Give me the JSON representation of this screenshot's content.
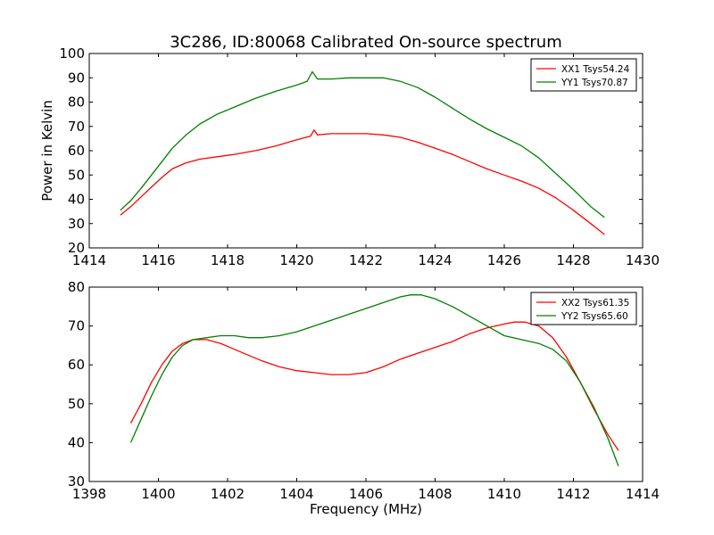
{
  "figure": {
    "title": "3C286, ID:80068 Calibrated On-source spectrum"
  },
  "chart_data": [
    {
      "type": "line",
      "title": "3C286, ID:80068 Calibrated On-source spectrum",
      "xlabel": "",
      "ylabel": "Power in Kelvin",
      "xlim": [
        1414,
        1430
      ],
      "ylim": [
        20,
        100
      ],
      "xticks": [
        1414,
        1416,
        1418,
        1420,
        1422,
        1424,
        1426,
        1428,
        1430
      ],
      "yticks": [
        20,
        30,
        40,
        50,
        60,
        70,
        80,
        90,
        100
      ],
      "grid": false,
      "legend_position": "top-right",
      "series": [
        {
          "name": "XX1 Tsys54.24",
          "color": "#ff0000",
          "x": [
            1414.9,
            1415.2,
            1415.5,
            1415.8,
            1416.1,
            1416.4,
            1416.8,
            1417.2,
            1417.7,
            1418.2,
            1418.8,
            1419.4,
            1420.0,
            1420.4,
            1420.5,
            1420.6,
            1421.0,
            1421.5,
            1422.0,
            1422.5,
            1423.0,
            1423.5,
            1424.0,
            1424.5,
            1425.0,
            1425.5,
            1426.0,
            1426.5,
            1427.0,
            1427.5,
            1428.0,
            1428.5,
            1428.9
          ],
          "y": [
            33.5,
            37.0,
            41.0,
            45.0,
            49.0,
            52.5,
            55.0,
            56.5,
            57.5,
            58.5,
            60.0,
            62.0,
            64.5,
            66.0,
            68.5,
            66.5,
            67.0,
            67.0,
            67.0,
            66.5,
            65.5,
            63.5,
            61.0,
            58.5,
            55.5,
            52.5,
            50.0,
            47.5,
            44.5,
            40.5,
            35.5,
            30.0,
            25.5
          ]
        },
        {
          "name": "YY1 Tsys70.87",
          "color": "#008000",
          "x": [
            1414.9,
            1415.2,
            1415.5,
            1415.8,
            1416.1,
            1416.4,
            1416.8,
            1417.2,
            1417.7,
            1418.2,
            1418.8,
            1419.4,
            1420.0,
            1420.3,
            1420.45,
            1420.6,
            1421.0,
            1421.5,
            1422.0,
            1422.5,
            1423.0,
            1423.5,
            1424.0,
            1424.5,
            1425.0,
            1425.5,
            1426.0,
            1426.5,
            1427.0,
            1427.5,
            1428.0,
            1428.5,
            1428.9
          ],
          "y": [
            35.5,
            39.5,
            44.5,
            50.0,
            55.5,
            61.0,
            66.5,
            71.0,
            75.0,
            78.0,
            81.5,
            84.5,
            87.0,
            88.5,
            92.5,
            89.5,
            89.5,
            90.0,
            90.0,
            90.0,
            88.5,
            86.0,
            82.0,
            77.5,
            73.0,
            69.0,
            65.5,
            62.0,
            57.0,
            50.5,
            44.0,
            37.0,
            32.5
          ]
        }
      ]
    },
    {
      "type": "line",
      "title": "",
      "xlabel": "Frequency (MHz)",
      "ylabel": "",
      "xlim": [
        1398,
        1414
      ],
      "ylim": [
        30,
        80
      ],
      "xticks": [
        1398,
        1400,
        1402,
        1404,
        1406,
        1408,
        1410,
        1412,
        1414
      ],
      "yticks": [
        30,
        40,
        50,
        60,
        70,
        80
      ],
      "grid": false,
      "legend_position": "top-right",
      "series": [
        {
          "name": "XX2 Tsys61.35",
          "color": "#ff0000",
          "x": [
            1399.2,
            1399.5,
            1399.8,
            1400.1,
            1400.4,
            1400.7,
            1401.0,
            1401.4,
            1401.8,
            1402.2,
            1402.6,
            1403.0,
            1403.5,
            1404.0,
            1404.5,
            1405.0,
            1405.5,
            1406.0,
            1406.5,
            1407.0,
            1407.5,
            1408.0,
            1408.5,
            1409.0,
            1409.5,
            1410.0,
            1410.3,
            1410.6,
            1411.0,
            1411.4,
            1411.8,
            1412.2,
            1412.6,
            1413.0,
            1413.3
          ],
          "y": [
            45.0,
            50.0,
            55.5,
            60.0,
            63.5,
            65.5,
            66.5,
            66.5,
            65.5,
            64.0,
            62.5,
            61.0,
            59.5,
            58.5,
            58.0,
            57.5,
            57.5,
            58.0,
            59.5,
            61.5,
            63.0,
            64.5,
            66.0,
            68.0,
            69.5,
            70.5,
            71.0,
            71.0,
            70.0,
            67.0,
            62.0,
            55.5,
            48.5,
            42.0,
            38.0
          ]
        },
        {
          "name": "YY2 Tsys65.60",
          "color": "#008000",
          "x": [
            1399.2,
            1399.5,
            1399.8,
            1400.1,
            1400.4,
            1400.7,
            1401.0,
            1401.4,
            1401.8,
            1402.2,
            1402.6,
            1403.0,
            1403.5,
            1404.0,
            1404.5,
            1405.0,
            1405.5,
            1406.0,
            1406.5,
            1407.0,
            1407.3,
            1407.6,
            1408.0,
            1408.5,
            1409.0,
            1409.5,
            1410.0,
            1410.5,
            1411.0,
            1411.4,
            1411.8,
            1412.2,
            1412.6,
            1413.0,
            1413.3
          ],
          "y": [
            40.0,
            46.0,
            52.0,
            57.5,
            62.0,
            65.0,
            66.5,
            67.0,
            67.5,
            67.5,
            67.0,
            67.0,
            67.5,
            68.5,
            70.0,
            71.5,
            73.0,
            74.5,
            76.0,
            77.5,
            78.0,
            78.0,
            77.0,
            75.0,
            72.5,
            70.0,
            67.5,
            66.5,
            65.5,
            64.0,
            61.0,
            55.5,
            49.0,
            41.0,
            34.0
          ]
        }
      ]
    }
  ]
}
